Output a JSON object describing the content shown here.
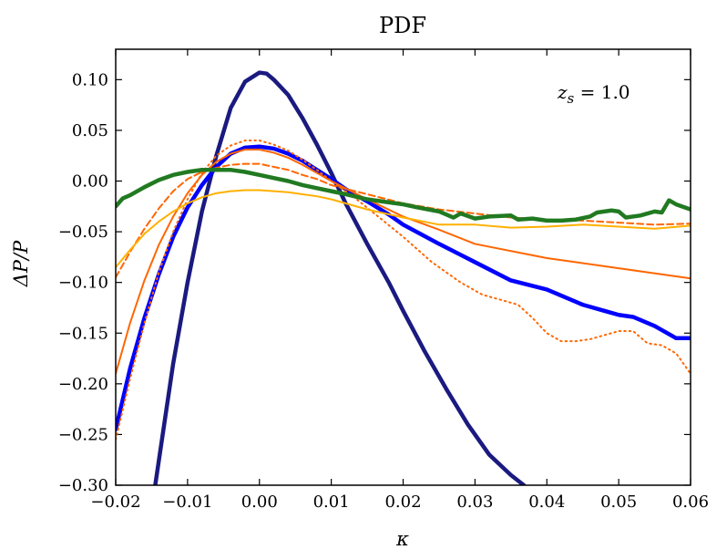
{
  "chart_data": {
    "type": "line",
    "title": "PDF",
    "xlabel": "κ",
    "ylabel": "ΔP/P",
    "annotation": "z_s = 1.0",
    "annotation_main": "z",
    "annotation_sub": "s",
    "annotation_rest": " = 1.0",
    "xlim": [
      -0.02,
      0.06
    ],
    "ylim": [
      -0.3,
      0.13
    ],
    "xticks": [
      -0.02,
      -0.01,
      0.0,
      0.01,
      0.02,
      0.03,
      0.04,
      0.05,
      0.06
    ],
    "xtick_labels": [
      "−0.02",
      "−0.01",
      "0.00",
      "0.01",
      "0.02",
      "0.03",
      "0.04",
      "0.05",
      "0.06"
    ],
    "yticks": [
      0.1,
      0.05,
      0.0,
      -0.05,
      -0.1,
      -0.15,
      -0.2,
      -0.25,
      -0.3
    ],
    "ytick_labels": [
      "0.10",
      "0.05",
      "0.00",
      "−0.05",
      "−0.10",
      "−0.15",
      "−0.20",
      "−0.25",
      "−0.30"
    ],
    "grid": false,
    "series": [
      {
        "color": "#1a1a80",
        "style": "solid",
        "weight": "thick",
        "points": [
          [
            -0.0145,
            -0.3
          ],
          [
            -0.012,
            -0.18
          ],
          [
            -0.01,
            -0.1
          ],
          [
            -0.008,
            -0.03
          ],
          [
            -0.006,
            0.025
          ],
          [
            -0.004,
            0.072
          ],
          [
            -0.002,
            0.098
          ],
          [
            0.0,
            0.107
          ],
          [
            0.001,
            0.106
          ],
          [
            0.002,
            0.1
          ],
          [
            0.004,
            0.085
          ],
          [
            0.006,
            0.062
          ],
          [
            0.008,
            0.036
          ],
          [
            0.01,
            0.008
          ],
          [
            0.012,
            -0.022
          ],
          [
            0.015,
            -0.062
          ],
          [
            0.018,
            -0.1
          ],
          [
            0.02,
            -0.128
          ],
          [
            0.023,
            -0.168
          ],
          [
            0.026,
            -0.205
          ],
          [
            0.029,
            -0.24
          ],
          [
            0.032,
            -0.27
          ],
          [
            0.035,
            -0.29
          ],
          [
            0.0368,
            -0.3
          ]
        ]
      },
      {
        "color": "#0000ff",
        "style": "solid",
        "weight": "thick",
        "points": [
          [
            -0.02,
            -0.245
          ],
          [
            -0.018,
            -0.185
          ],
          [
            -0.016,
            -0.135
          ],
          [
            -0.014,
            -0.092
          ],
          [
            -0.012,
            -0.055
          ],
          [
            -0.01,
            -0.026
          ],
          [
            -0.008,
            -0.004
          ],
          [
            -0.006,
            0.014
          ],
          [
            -0.004,
            0.027
          ],
          [
            -0.002,
            0.033
          ],
          [
            0.0,
            0.034
          ],
          [
            0.002,
            0.032
          ],
          [
            0.004,
            0.027
          ],
          [
            0.006,
            0.02
          ],
          [
            0.008,
            0.011
          ],
          [
            0.01,
            0.002
          ],
          [
            0.012,
            -0.008
          ],
          [
            0.015,
            -0.02
          ],
          [
            0.018,
            -0.033
          ],
          [
            0.02,
            -0.043
          ],
          [
            0.025,
            -0.062
          ],
          [
            0.03,
            -0.08
          ],
          [
            0.035,
            -0.098
          ],
          [
            0.04,
            -0.107
          ],
          [
            0.045,
            -0.122
          ],
          [
            0.048,
            -0.128
          ],
          [
            0.05,
            -0.132
          ],
          [
            0.052,
            -0.134
          ],
          [
            0.055,
            -0.143
          ],
          [
            0.058,
            -0.155
          ],
          [
            0.06,
            -0.155
          ]
        ]
      },
      {
        "color": "#ff6600",
        "style": "solid",
        "weight": "normal",
        "points": [
          [
            -0.02,
            -0.19
          ],
          [
            -0.018,
            -0.14
          ],
          [
            -0.016,
            -0.098
          ],
          [
            -0.014,
            -0.063
          ],
          [
            -0.012,
            -0.035
          ],
          [
            -0.01,
            -0.012
          ],
          [
            -0.008,
            0.006
          ],
          [
            -0.006,
            0.019
          ],
          [
            -0.004,
            0.027
          ],
          [
            -0.002,
            0.031
          ],
          [
            0.0,
            0.031
          ],
          [
            0.002,
            0.028
          ],
          [
            0.004,
            0.023
          ],
          [
            0.006,
            0.016
          ],
          [
            0.008,
            0.008
          ],
          [
            0.01,
            0.0
          ],
          [
            0.015,
            -0.018
          ],
          [
            0.02,
            -0.035
          ],
          [
            0.025,
            -0.048
          ],
          [
            0.03,
            -0.062
          ],
          [
            0.04,
            -0.076
          ],
          [
            0.05,
            -0.086
          ],
          [
            0.06,
            -0.096
          ]
        ]
      },
      {
        "color": "#ff6600",
        "style": "dotted",
        "weight": "normal",
        "points": [
          [
            -0.02,
            -0.255
          ],
          [
            -0.018,
            -0.195
          ],
          [
            -0.016,
            -0.14
          ],
          [
            -0.014,
            -0.09
          ],
          [
            -0.012,
            -0.05
          ],
          [
            -0.01,
            -0.018
          ],
          [
            -0.008,
            0.008
          ],
          [
            -0.006,
            0.025
          ],
          [
            -0.004,
            0.035
          ],
          [
            -0.002,
            0.04
          ],
          [
            0.0,
            0.04
          ],
          [
            0.002,
            0.036
          ],
          [
            0.004,
            0.03
          ],
          [
            0.006,
            0.021
          ],
          [
            0.008,
            0.011
          ],
          [
            0.01,
            0.0
          ],
          [
            0.013,
            -0.015
          ],
          [
            0.016,
            -0.032
          ],
          [
            0.02,
            -0.055
          ],
          [
            0.024,
            -0.08
          ],
          [
            0.028,
            -0.1
          ],
          [
            0.031,
            -0.112
          ],
          [
            0.034,
            -0.118
          ],
          [
            0.036,
            -0.122
          ],
          [
            0.038,
            -0.135
          ],
          [
            0.04,
            -0.15
          ],
          [
            0.042,
            -0.158
          ],
          [
            0.044,
            -0.158
          ],
          [
            0.046,
            -0.156
          ],
          [
            0.048,
            -0.152
          ],
          [
            0.05,
            -0.148
          ],
          [
            0.052,
            -0.148
          ],
          [
            0.054,
            -0.16
          ],
          [
            0.056,
            -0.162
          ],
          [
            0.058,
            -0.17
          ],
          [
            0.06,
            -0.19
          ]
        ]
      },
      {
        "color": "#ff6600",
        "style": "dashed",
        "weight": "normal",
        "points": [
          [
            -0.02,
            -0.095
          ],
          [
            -0.018,
            -0.07
          ],
          [
            -0.016,
            -0.047
          ],
          [
            -0.014,
            -0.027
          ],
          [
            -0.012,
            -0.01
          ],
          [
            -0.01,
            0.002
          ],
          [
            -0.008,
            0.009
          ],
          [
            -0.006,
            0.013
          ],
          [
            -0.004,
            0.016
          ],
          [
            -0.002,
            0.017
          ],
          [
            0.0,
            0.017
          ],
          [
            0.002,
            0.014
          ],
          [
            0.004,
            0.011
          ],
          [
            0.006,
            0.006
          ],
          [
            0.008,
            0.002
          ],
          [
            0.01,
            -0.004
          ],
          [
            0.015,
            -0.013
          ],
          [
            0.02,
            -0.022
          ],
          [
            0.025,
            -0.028
          ],
          [
            0.03,
            -0.032
          ],
          [
            0.035,
            -0.036
          ],
          [
            0.04,
            -0.038
          ],
          [
            0.045,
            -0.039
          ],
          [
            0.05,
            -0.041
          ],
          [
            0.055,
            -0.043
          ],
          [
            0.06,
            -0.042
          ]
        ]
      },
      {
        "color": "#ffb000",
        "style": "solid",
        "weight": "normal",
        "points": [
          [
            -0.02,
            -0.085
          ],
          [
            -0.018,
            -0.068
          ],
          [
            -0.016,
            -0.052
          ],
          [
            -0.014,
            -0.04
          ],
          [
            -0.012,
            -0.03
          ],
          [
            -0.01,
            -0.022
          ],
          [
            -0.008,
            -0.016
          ],
          [
            -0.006,
            -0.012
          ],
          [
            -0.004,
            -0.01
          ],
          [
            -0.002,
            -0.009
          ],
          [
            0.0,
            -0.009
          ],
          [
            0.002,
            -0.01
          ],
          [
            0.004,
            -0.011
          ],
          [
            0.006,
            -0.013
          ],
          [
            0.008,
            -0.015
          ],
          [
            0.01,
            -0.018
          ],
          [
            0.015,
            -0.028
          ],
          [
            0.02,
            -0.036
          ],
          [
            0.025,
            -0.043
          ],
          [
            0.03,
            -0.043
          ],
          [
            0.035,
            -0.046
          ],
          [
            0.04,
            -0.045
          ],
          [
            0.045,
            -0.043
          ],
          [
            0.05,
            -0.045
          ],
          [
            0.055,
            -0.047
          ],
          [
            0.06,
            -0.044
          ]
        ]
      },
      {
        "color": "#217a21",
        "style": "solid",
        "weight": "thick",
        "points": [
          [
            -0.02,
            -0.025
          ],
          [
            -0.019,
            -0.017
          ],
          [
            -0.018,
            -0.014
          ],
          [
            -0.016,
            -0.006
          ],
          [
            -0.014,
            0.001
          ],
          [
            -0.012,
            0.006
          ],
          [
            -0.01,
            0.009
          ],
          [
            -0.008,
            0.011
          ],
          [
            -0.006,
            0.011
          ],
          [
            -0.004,
            0.011
          ],
          [
            -0.002,
            0.009
          ],
          [
            0.0,
            0.006
          ],
          [
            0.002,
            0.003
          ],
          [
            0.004,
            0.0
          ],
          [
            0.006,
            -0.004
          ],
          [
            0.008,
            -0.007
          ],
          [
            0.01,
            -0.01
          ],
          [
            0.012,
            -0.013
          ],
          [
            0.015,
            -0.018
          ],
          [
            0.018,
            -0.021
          ],
          [
            0.02,
            -0.023
          ],
          [
            0.022,
            -0.026
          ],
          [
            0.025,
            -0.03
          ],
          [
            0.027,
            -0.036
          ],
          [
            0.028,
            -0.032
          ],
          [
            0.03,
            -0.037
          ],
          [
            0.032,
            -0.035
          ],
          [
            0.035,
            -0.034
          ],
          [
            0.036,
            -0.038
          ],
          [
            0.038,
            -0.037
          ],
          [
            0.04,
            -0.039
          ],
          [
            0.042,
            -0.039
          ],
          [
            0.044,
            -0.038
          ],
          [
            0.046,
            -0.035
          ],
          [
            0.047,
            -0.031
          ],
          [
            0.049,
            -0.029
          ],
          [
            0.05,
            -0.03
          ],
          [
            0.051,
            -0.036
          ],
          [
            0.053,
            -0.034
          ],
          [
            0.055,
            -0.03
          ],
          [
            0.056,
            -0.031
          ],
          [
            0.057,
            -0.019
          ],
          [
            0.058,
            -0.023
          ],
          [
            0.06,
            -0.028
          ]
        ]
      }
    ]
  }
}
